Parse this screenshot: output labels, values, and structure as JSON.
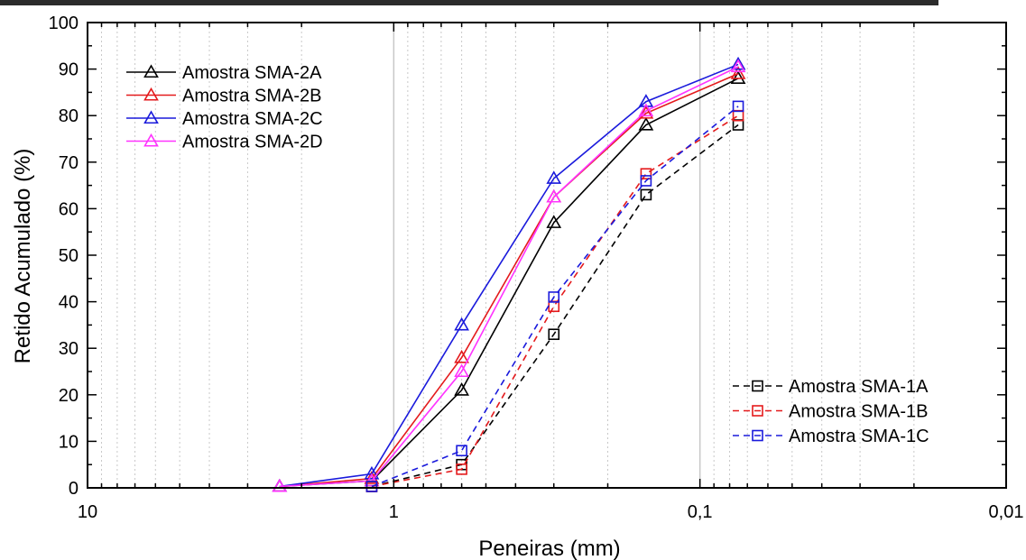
{
  "chart_data": {
    "type": "line",
    "xlabel": "Peneiras (mm)",
    "ylabel": "Retido Acumulado (%)",
    "x_scale": "log",
    "x_reversed": true,
    "xlim": [
      10,
      0.01
    ],
    "ylim": [
      0,
      100
    ],
    "x_ticks": [
      {
        "value": 10,
        "label": "10"
      },
      {
        "value": 1,
        "label": "1"
      },
      {
        "value": 0.1,
        "label": "0,1"
      },
      {
        "value": 0.01,
        "label": "0,01"
      }
    ],
    "y_ticks": [
      0,
      10,
      20,
      30,
      40,
      50,
      60,
      70,
      80,
      90,
      100
    ],
    "grid": "vertical minor dotted, vertical major solid",
    "legends": [
      {
        "placement": "top-left",
        "entries": [
          "Amostra SMA-2A",
          "Amostra SMA-2B",
          "Amostra SMA-2C",
          "Amostra SMA-2D"
        ]
      },
      {
        "placement": "bottom-right",
        "entries": [
          "Amostra SMA-1A",
          "Amostra SMA-1B",
          "Amostra SMA-1C"
        ]
      }
    ],
    "series": [
      {
        "name": "Amostra SMA-2A",
        "color": "#000000",
        "marker": "triangle",
        "dash": "solid",
        "x": [
          2.36,
          1.18,
          0.6,
          0.3,
          0.15,
          0.075
        ],
        "y": [
          0.3,
          1.5,
          21,
          57,
          78,
          88
        ]
      },
      {
        "name": "Amostra SMA-2B",
        "color": "#e41a1c",
        "marker": "triangle",
        "dash": "solid",
        "x": [
          2.36,
          1.18,
          0.6,
          0.3,
          0.15,
          0.075
        ],
        "y": [
          0.3,
          2,
          28,
          62.5,
          80.5,
          89
        ]
      },
      {
        "name": "Amostra SMA-2C",
        "color": "#1a1adc",
        "marker": "triangle",
        "dash": "solid",
        "x": [
          2.36,
          1.18,
          0.6,
          0.3,
          0.15,
          0.075
        ],
        "y": [
          0.3,
          3,
          35,
          66.5,
          83,
          91
        ]
      },
      {
        "name": "Amostra SMA-2D",
        "color": "#ff33ff",
        "marker": "triangle",
        "dash": "solid",
        "x": [
          2.36,
          1.18,
          0.6,
          0.3,
          0.15,
          0.075
        ],
        "y": [
          0.3,
          1.5,
          25,
          62.5,
          81,
          90.5
        ]
      },
      {
        "name": "Amostra SMA-1A",
        "color": "#000000",
        "marker": "square",
        "dash": "dashed",
        "x": [
          1.18,
          0.6,
          0.3,
          0.15,
          0.075
        ],
        "y": [
          0.3,
          5,
          33,
          63,
          78
        ]
      },
      {
        "name": "Amostra SMA-1B",
        "color": "#e41a1c",
        "marker": "square",
        "dash": "dashed",
        "x": [
          1.18,
          0.6,
          0.3,
          0.15,
          0.075
        ],
        "y": [
          0.3,
          4,
          39,
          67.5,
          80
        ]
      },
      {
        "name": "Amostra SMA-1C",
        "color": "#1a1adc",
        "marker": "square",
        "dash": "dashed",
        "x": [
          1.18,
          0.6,
          0.3,
          0.15,
          0.075
        ],
        "y": [
          0.3,
          8,
          41,
          66,
          82
        ]
      }
    ]
  }
}
